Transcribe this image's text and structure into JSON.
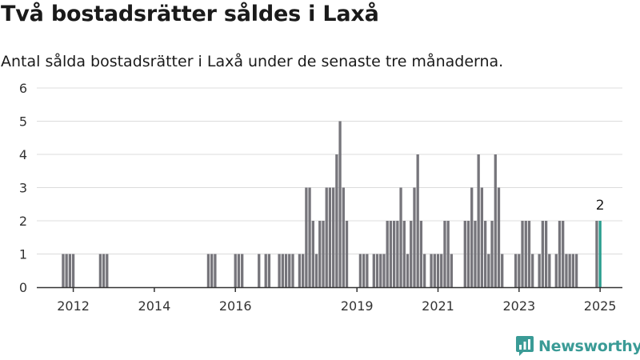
{
  "title": "Två bostadsrätter såldes i Laxå",
  "subtitle": "Antal sålda bostadsrätter i Laxå under de senaste tre månaderna.",
  "brand": {
    "name": "Newsworthy"
  },
  "colors": {
    "bar": "#76757b",
    "highlight": "#2a9d8f",
    "grid": "#dcdcdc",
    "axis": "#333333",
    "brand": "#3a9b96"
  },
  "chart_data": {
    "type": "bar",
    "x_unit": "quarter",
    "ylim": [
      0,
      6
    ],
    "y_ticks": [
      0,
      1,
      2,
      3,
      4,
      5,
      6
    ],
    "x_ticks": [
      "2012",
      "2014",
      "2016",
      "2019",
      "2021",
      "2023",
      "2025"
    ],
    "highlight_label": "2",
    "series": [
      {
        "values": [
          [
            2011.75,
            1
          ],
          [
            2011.833,
            1
          ],
          [
            2011.917,
            1
          ],
          [
            2012.0,
            1
          ],
          [
            2012.667,
            1
          ],
          [
            2012.75,
            1
          ],
          [
            2012.833,
            1
          ],
          [
            2015.333,
            1
          ],
          [
            2015.417,
            1
          ],
          [
            2015.5,
            1
          ],
          [
            2016.0,
            1
          ],
          [
            2016.083,
            1
          ],
          [
            2016.167,
            1
          ],
          [
            2016.583,
            1
          ],
          [
            2016.75,
            1
          ],
          [
            2016.833,
            1
          ],
          [
            2017.083,
            1
          ],
          [
            2017.167,
            1
          ],
          [
            2017.25,
            1
          ],
          [
            2017.333,
            1
          ],
          [
            2017.417,
            1
          ],
          [
            2017.583,
            1
          ],
          [
            2017.667,
            1
          ],
          [
            2017.75,
            3
          ],
          [
            2017.833,
            3
          ],
          [
            2017.917,
            2
          ],
          [
            2018.0,
            1
          ],
          [
            2018.083,
            2
          ],
          [
            2018.167,
            2
          ],
          [
            2018.25,
            3
          ],
          [
            2018.333,
            3
          ],
          [
            2018.417,
            3
          ],
          [
            2018.5,
            4
          ],
          [
            2018.583,
            5
          ],
          [
            2018.667,
            3
          ],
          [
            2018.75,
            2
          ],
          [
            2019.083,
            1
          ],
          [
            2019.167,
            1
          ],
          [
            2019.25,
            1
          ],
          [
            2019.417,
            1
          ],
          [
            2019.5,
            1
          ],
          [
            2019.583,
            1
          ],
          [
            2019.667,
            1
          ],
          [
            2019.75,
            2
          ],
          [
            2019.833,
            2
          ],
          [
            2019.917,
            2
          ],
          [
            2020.0,
            2
          ],
          [
            2020.083,
            3
          ],
          [
            2020.167,
            2
          ],
          [
            2020.25,
            1
          ],
          [
            2020.333,
            2
          ],
          [
            2020.417,
            3
          ],
          [
            2020.5,
            4
          ],
          [
            2020.583,
            2
          ],
          [
            2020.667,
            1
          ],
          [
            2020.833,
            1
          ],
          [
            2020.917,
            1
          ],
          [
            2021.0,
            1
          ],
          [
            2021.083,
            1
          ],
          [
            2021.167,
            2
          ],
          [
            2021.25,
            2
          ],
          [
            2021.333,
            1
          ],
          [
            2021.667,
            2
          ],
          [
            2021.75,
            2
          ],
          [
            2021.833,
            3
          ],
          [
            2021.917,
            2
          ],
          [
            2022.0,
            4
          ],
          [
            2022.083,
            3
          ],
          [
            2022.167,
            2
          ],
          [
            2022.25,
            1
          ],
          [
            2022.333,
            2
          ],
          [
            2022.417,
            4
          ],
          [
            2022.5,
            3
          ],
          [
            2022.583,
            1
          ],
          [
            2022.917,
            1
          ],
          [
            2023.0,
            1
          ],
          [
            2023.083,
            2
          ],
          [
            2023.167,
            2
          ],
          [
            2023.25,
            2
          ],
          [
            2023.333,
            1
          ],
          [
            2023.5,
            1
          ],
          [
            2023.583,
            2
          ],
          [
            2023.667,
            2
          ],
          [
            2023.75,
            1
          ],
          [
            2023.917,
            1
          ],
          [
            2024.0,
            2
          ],
          [
            2024.083,
            2
          ],
          [
            2024.167,
            1
          ],
          [
            2024.25,
            1
          ],
          [
            2024.333,
            1
          ],
          [
            2024.417,
            1
          ],
          [
            2024.917,
            2
          ]
        ]
      }
    ],
    "highlight": [
      2025.0,
      2
    ]
  }
}
